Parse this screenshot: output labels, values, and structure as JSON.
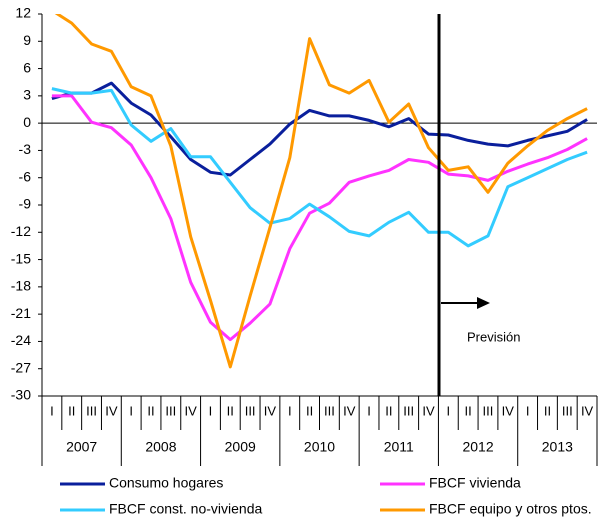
{
  "chart_data": {
    "type": "line",
    "categories": [
      "I",
      "II",
      "III",
      "IV",
      "I",
      "II",
      "III",
      "IV",
      "I",
      "II",
      "III",
      "IV",
      "I",
      "II",
      "III",
      "IV",
      "I",
      "II",
      "III",
      "IV",
      "I",
      "II",
      "III",
      "IV",
      "I",
      "II",
      "III",
      "IV"
    ],
    "years": [
      "2007",
      "2008",
      "2009",
      "2010",
      "2011",
      "2012",
      "2013"
    ],
    "forecast_label": "Previsión",
    "ylim": [
      -30,
      12
    ],
    "yticks": [
      -30,
      -27,
      -24,
      -21,
      -18,
      -15,
      -12,
      -9,
      -6,
      -3,
      0,
      3,
      6,
      9,
      12
    ],
    "series": [
      {
        "name": "Consumo hogares",
        "color": "#0a1f9c",
        "values": [
          2.7,
          3.3,
          3.3,
          4.4,
          2.2,
          0.9,
          -1.5,
          -4.0,
          -5.4,
          -5.7,
          -4.0,
          -2.3,
          -0.1,
          1.4,
          0.8,
          0.8,
          0.3,
          -0.4,
          0.5,
          -1.2,
          -1.3,
          -1.9,
          -2.3,
          -2.5,
          -1.9,
          -1.4,
          -0.9,
          0.4
        ]
      },
      {
        "name": "FBCF vivienda",
        "color": "#ff33ff",
        "values": [
          3.0,
          3.0,
          0.1,
          -0.5,
          -2.4,
          -6.0,
          -10.5,
          -17.5,
          -21.9,
          -23.8,
          -22.0,
          -19.9,
          -13.8,
          -9.9,
          -8.8,
          -6.5,
          -5.8,
          -5.2,
          -4.0,
          -4.3,
          -5.6,
          -5.8,
          -6.3,
          -5.3,
          -4.5,
          -3.8,
          -2.9,
          -1.7
        ]
      },
      {
        "name": "FBCF const. no-vivienda",
        "color": "#33ccff",
        "values": [
          3.8,
          3.3,
          3.3,
          3.6,
          -0.2,
          -2.0,
          -0.6,
          -3.7,
          -3.7,
          -6.5,
          -9.3,
          -11.0,
          -10.5,
          -8.9,
          -10.3,
          -11.9,
          -12.4,
          -10.9,
          -9.8,
          -12.0,
          -12.0,
          -13.5,
          -12.4,
          -7.0,
          -6.0,
          -5.0,
          -4.0,
          -3.2
        ]
      },
      {
        "name": "FBCF equipo y otros ptos.",
        "color": "#ff9900",
        "values": [
          12.4,
          11.0,
          8.7,
          7.9,
          4.0,
          3.0,
          -2.5,
          -12.5,
          -19.5,
          -26.8,
          -19.0,
          -11.5,
          -3.8,
          9.3,
          4.2,
          3.3,
          4.7,
          0.1,
          2.1,
          -2.7,
          -5.2,
          -4.8,
          -7.6,
          -4.4,
          -2.5,
          -0.8,
          0.5,
          1.6
        ]
      }
    ]
  }
}
